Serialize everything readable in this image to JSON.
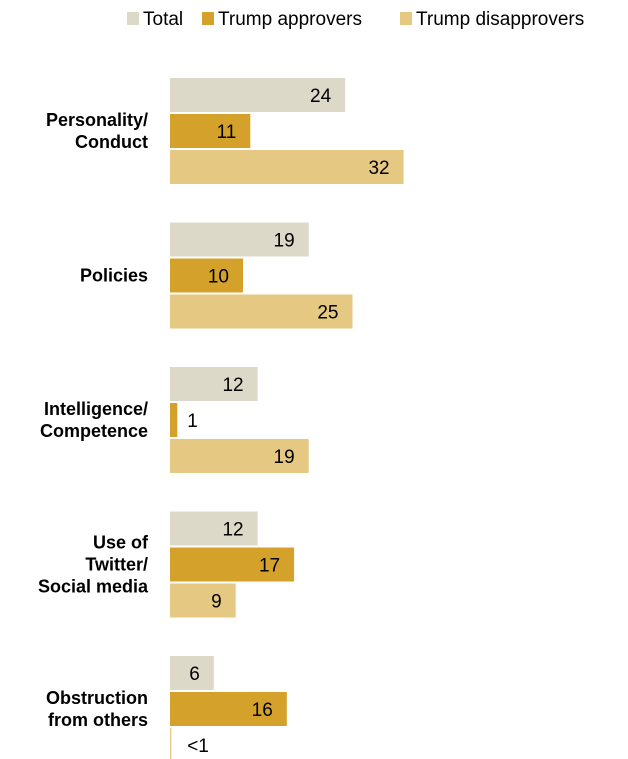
{
  "chart_data": {
    "type": "bar",
    "orientation": "horizontal",
    "legend_position": "top",
    "series": [
      {
        "name": "Total",
        "color": "#dcd9c9",
        "values": [
          24,
          19,
          12,
          12,
          6
        ],
        "labels": [
          "24",
          "19",
          "12",
          "12",
          "6"
        ]
      },
      {
        "name": "Trump approvers",
        "color": "#d4a22a",
        "values": [
          11,
          10,
          1,
          17,
          16
        ],
        "labels": [
          "11",
          "10",
          "1",
          "17",
          "16"
        ]
      },
      {
        "name": "Trump disapprovers",
        "color": "#e5c881",
        "values": [
          32,
          25,
          19,
          9,
          0.5
        ],
        "labels": [
          "32",
          "25",
          "19",
          "9",
          "<1"
        ]
      }
    ],
    "categories": [
      {
        "lines": [
          "Personality/",
          "Conduct"
        ]
      },
      {
        "lines": [
          "Policies"
        ]
      },
      {
        "lines": [
          "Intelligence/",
          "Competence"
        ]
      },
      {
        "lines": [
          "Use of",
          "Twitter/",
          "Social media"
        ]
      },
      {
        "lines": [
          "Obstruction",
          "from others"
        ]
      }
    ],
    "xlim": [
      0,
      35
    ],
    "grid": false
  }
}
